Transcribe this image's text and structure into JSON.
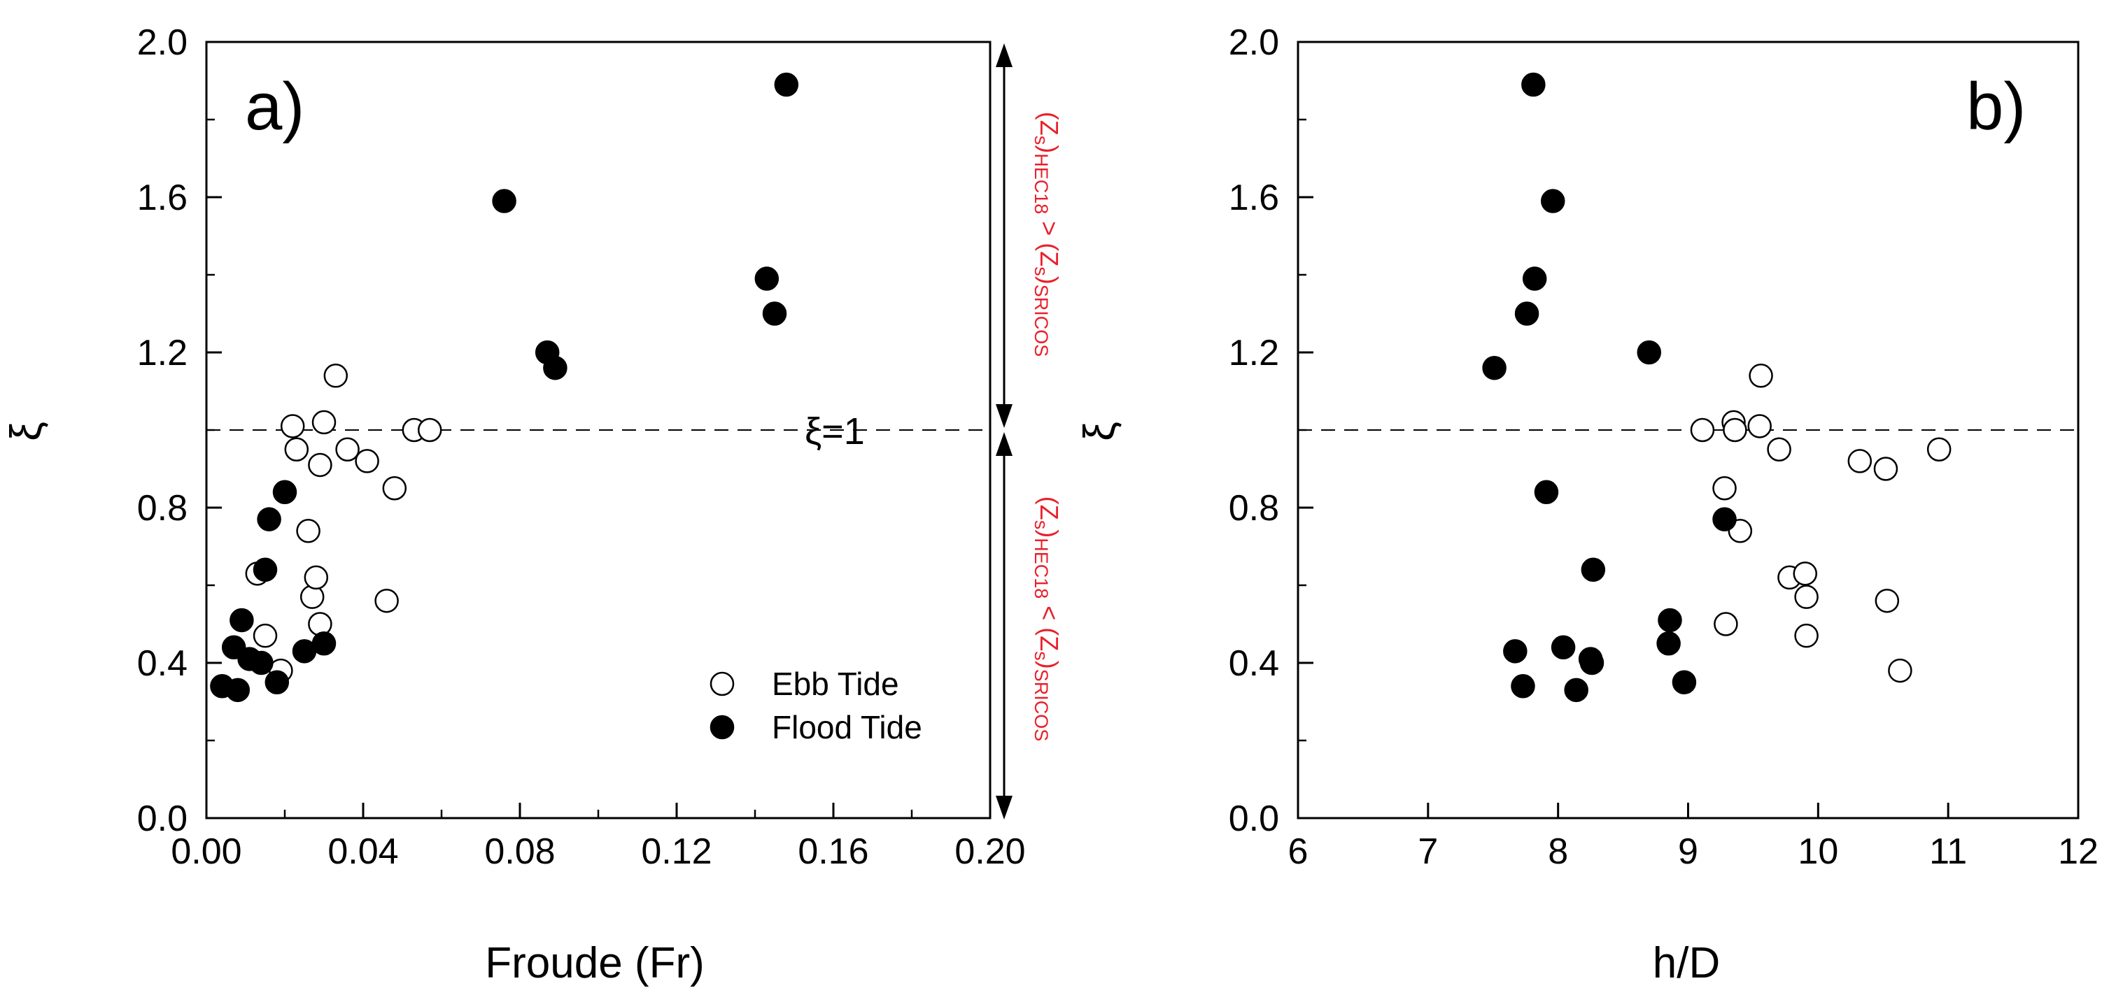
{
  "figure": {
    "annotations": {
      "xi_eq_1": "ξ=1",
      "upper_region": {
        "a": "(Z",
        "b": "s",
        "c": ")",
        "d": "HEC18",
        "e": " > (Z",
        "f": "s",
        "g": ")",
        "h": "SRICOS"
      },
      "lower_region": {
        "a": "(Z",
        "b": "s",
        "c": ")",
        "d": "HEC18",
        "e": " < (Z",
        "f": "s",
        "g": ")",
        "h": "SRICOS"
      }
    }
  },
  "chart_data": [
    {
      "type": "scatter",
      "panel_label": "a)",
      "xlabel": "Froude (Fr)",
      "ylabel": "ξ",
      "xlim": [
        0.0,
        0.2
      ],
      "ylim": [
        0.0,
        2.0
      ],
      "x_ticks": [
        "0.00",
        "0.04",
        "0.08",
        "0.12",
        "0.16",
        "0.20"
      ],
      "x_tick_values": [
        0.0,
        0.04,
        0.08,
        0.12,
        0.16,
        0.2
      ],
      "y_ticks": [
        "0.0",
        "0.4",
        "0.8",
        "1.2",
        "1.6",
        "2.0"
      ],
      "y_tick_values": [
        0.0,
        0.4,
        0.8,
        1.2,
        1.6,
        2.0
      ],
      "reference_line": {
        "y": 1.0,
        "style": "dashed"
      },
      "legend": {
        "position": "bottom-right",
        "entries": [
          "Ebb Tide",
          "Flood Tide"
        ]
      },
      "series": [
        {
          "name": "Ebb Tide",
          "marker": "open-circle",
          "points": [
            [
              0.013,
              0.63
            ],
            [
              0.015,
              0.47
            ],
            [
              0.019,
              0.38
            ],
            [
              0.022,
              1.01
            ],
            [
              0.023,
              0.95
            ],
            [
              0.026,
              0.74
            ],
            [
              0.027,
              0.57
            ],
            [
              0.028,
              0.62
            ],
            [
              0.029,
              0.5
            ],
            [
              0.029,
              0.91
            ],
            [
              0.03,
              1.02
            ],
            [
              0.033,
              1.14
            ],
            [
              0.036,
              0.95
            ],
            [
              0.041,
              0.92
            ],
            [
              0.046,
              0.56
            ],
            [
              0.048,
              0.85
            ],
            [
              0.053,
              1.0
            ],
            [
              0.057,
              1.0
            ]
          ]
        },
        {
          "name": "Flood Tide",
          "marker": "filled-circle",
          "points": [
            [
              0.004,
              0.34
            ],
            [
              0.007,
              0.44
            ],
            [
              0.008,
              0.33
            ],
            [
              0.009,
              0.51
            ],
            [
              0.011,
              0.41
            ],
            [
              0.014,
              0.4
            ],
            [
              0.015,
              0.64
            ],
            [
              0.016,
              0.77
            ],
            [
              0.018,
              0.35
            ],
            [
              0.02,
              0.84
            ],
            [
              0.025,
              0.43
            ],
            [
              0.03,
              0.45
            ],
            [
              0.076,
              1.59
            ],
            [
              0.087,
              1.2
            ],
            [
              0.089,
              1.16
            ],
            [
              0.143,
              1.39
            ],
            [
              0.145,
              1.3
            ],
            [
              0.148,
              1.89
            ]
          ]
        }
      ]
    },
    {
      "type": "scatter",
      "panel_label": "b)",
      "xlabel": "h/D",
      "ylabel": "ξ",
      "xlim": [
        6,
        12
      ],
      "ylim": [
        0.0,
        2.0
      ],
      "x_ticks": [
        "6",
        "7",
        "8",
        "9",
        "10",
        "11",
        "12"
      ],
      "x_tick_values": [
        6,
        7,
        8,
        9,
        10,
        11,
        12
      ],
      "y_ticks": [
        "0.0",
        "0.4",
        "0.8",
        "1.2",
        "1.6",
        "2.0"
      ],
      "y_tick_values": [
        0.0,
        0.4,
        0.8,
        1.2,
        1.6,
        2.0
      ],
      "reference_line": {
        "y": 1.0,
        "style": "dashed"
      },
      "series": [
        {
          "name": "Ebb Tide",
          "marker": "open-circle",
          "points": [
            [
              9.11,
              1.0
            ],
            [
              9.28,
              0.85
            ],
            [
              9.29,
              0.5
            ],
            [
              9.35,
              1.02
            ],
            [
              9.36,
              1.0
            ],
            [
              9.4,
              0.74
            ],
            [
              9.55,
              1.01
            ],
            [
              9.56,
              1.14
            ],
            [
              9.7,
              0.95
            ],
            [
              9.78,
              0.62
            ],
            [
              9.9,
              0.63
            ],
            [
              9.91,
              0.57
            ],
            [
              9.91,
              0.47
            ],
            [
              10.32,
              0.92
            ],
            [
              10.52,
              0.9
            ],
            [
              10.53,
              0.56
            ],
            [
              10.63,
              0.38
            ],
            [
              10.93,
              0.95
            ]
          ]
        },
        {
          "name": "Flood Tide",
          "marker": "filled-circle",
          "points": [
            [
              7.51,
              1.16
            ],
            [
              7.67,
              0.43
            ],
            [
              7.73,
              0.34
            ],
            [
              7.76,
              1.3
            ],
            [
              7.81,
              1.89
            ],
            [
              7.82,
              1.39
            ],
            [
              7.91,
              0.84
            ],
            [
              7.96,
              1.59
            ],
            [
              8.04,
              0.44
            ],
            [
              8.14,
              0.33
            ],
            [
              8.25,
              0.41
            ],
            [
              8.26,
              0.4
            ],
            [
              8.27,
              0.64
            ],
            [
              8.7,
              1.2
            ],
            [
              8.85,
              0.45
            ],
            [
              8.86,
              0.51
            ],
            [
              8.97,
              0.35
            ],
            [
              9.28,
              0.77
            ]
          ]
        }
      ]
    }
  ]
}
